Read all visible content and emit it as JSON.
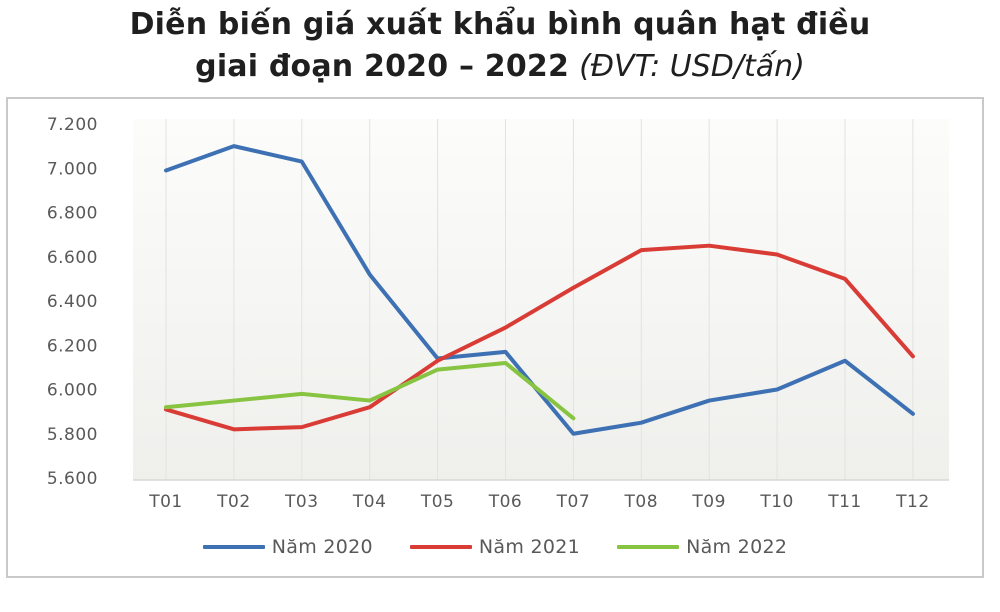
{
  "title": {
    "line1": "Diễn biến giá xuất khẩu bình quân hạt điều",
    "line2_bold": "giai đoạn 2020 – 2022",
    "line2_unit": "(ĐVT: USD/tấn)"
  },
  "chart_data": {
    "type": "line",
    "title": "Diễn biến giá xuất khẩu bình quân hạt điều giai đoạn 2020 – 2022",
    "unit": "USD/tấn",
    "categories": [
      "T01",
      "T02",
      "T03",
      "T04",
      "T05",
      "T06",
      "T07",
      "T08",
      "T09",
      "T10",
      "T11",
      "T12"
    ],
    "series": [
      {
        "name": "Năm 2020",
        "color": "#3e71b3",
        "values": [
          6990,
          7100,
          7030,
          6520,
          6140,
          6170,
          5800,
          5850,
          5950,
          6000,
          6130,
          5890
        ]
      },
      {
        "name": "Năm 2021",
        "color": "#d93b35",
        "values": [
          5910,
          5820,
          5830,
          5920,
          6130,
          6280,
          6460,
          6630,
          6650,
          6610,
          6500,
          6150
        ]
      },
      {
        "name": "Năm 2022",
        "color": "#87c441",
        "values": [
          5920,
          5950,
          5980,
          5950,
          6090,
          6120,
          5870
        ]
      }
    ],
    "y_axis": {
      "min": 5600,
      "max": 7200,
      "step": 200,
      "tick_labels": [
        "5.600",
        "5.800",
        "6.000",
        "6.200",
        "6.400",
        "6.600",
        "6.800",
        "7.000",
        "7.200"
      ]
    },
    "x_axis": {
      "tick_labels": [
        "T01",
        "T02",
        "T03",
        "T04",
        "T05",
        "T06",
        "T07",
        "T08",
        "T09",
        "T10",
        "T11",
        "T12"
      ]
    },
    "legend_position": "bottom",
    "grid": "vertical"
  }
}
